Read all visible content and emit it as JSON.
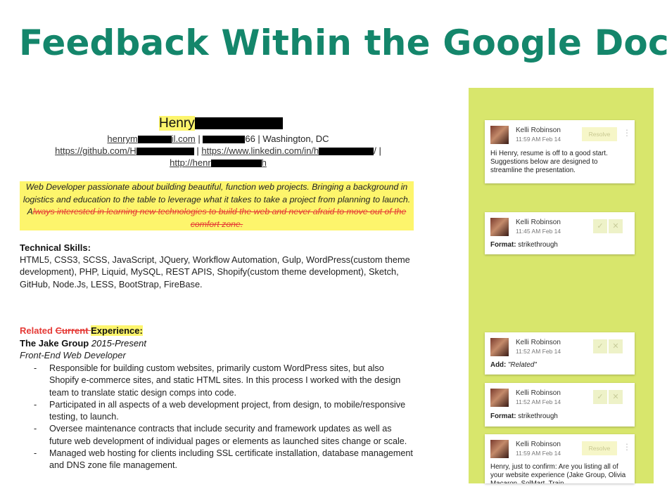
{
  "slide": {
    "title": "Feedback Within the Google Doc"
  },
  "resume": {
    "first_name": "Henry",
    "email_start": "henrym",
    "email_end": "il.com",
    "phone_sep": " | ",
    "phone_end": "66 | Washington, DC",
    "github": "https://github.com/H",
    "sep1": " | ",
    "linkedin": "https://www.linkedin.com/in/h",
    "sep2": "/ |",
    "site": "http://henr",
    "site_end": "h",
    "summary_kept": "Web Developer passionate about building beautiful, function web projects. Bringing a background in logistics and education to the table to leverage what it takes to take a project from planning to launch. A",
    "summary_struck": "lways interested in learning new technologies to build the web and never afraid to move out of the comfort zone.",
    "skills_heading": "Technical Skills:",
    "skills_text": "HTML5, CSS3, SCSS, JavaScript, JQuery, Workflow Automation, Gulp, WordPress(custom theme development), PHP, Liquid, MySQL, REST APIS, Shopify(custom theme development), Sketch, GitHub, Node.Js, LESS, BootStrap, FireBase.",
    "exp_related": "Related ",
    "exp_current": "Current ",
    "exp_word": "Experience:",
    "company": "The Jake Group",
    "company_dates": "2015-Present",
    "role": "Front-End Web Developer",
    "bullets": [
      "Responsible for building custom websites, primarily custom WordPress sites, but also Shopify e-commerce sites, and static HTML sites. In this process I worked with the design team to translate static design comps into code.",
      "Participated in all aspects of a web development project, from design, to mobile/responsive testing, to launch.",
      "Oversee maintenance contracts that include security and framework updates as well as future web development of individual pages or elements as launched sites change or scale.",
      "Managed web hosting for clients including SSL certificate installation, database management and DNS zone file management."
    ]
  },
  "comments": [
    {
      "author": "Kelli Robinson",
      "time": "11:59 AM Feb 14",
      "action": "Resolve",
      "text": "Hi Henry, resume is off to a good start. Suggestions below are designed to streamline the presentation."
    },
    {
      "author": "Kelli Robinson",
      "time": "11:45 AM Feb 14",
      "label": "Format:",
      "value": "strikethrough"
    },
    {
      "author": "Kelli Robinson",
      "time": "11:52 AM Feb 14",
      "label": "Add:",
      "value": "\"Related\""
    },
    {
      "author": "Kelli Robinson",
      "time": "11:52 AM Feb 14",
      "label": "Format:",
      "value": "strikethrough"
    },
    {
      "author": "Kelli Robinson",
      "time": "11:59 AM Feb 14",
      "action": "Resolve",
      "text": "Henry, just to confirm: Are you listing all of your website experience (Jake Group, Olivia Macaron, SolMart, Train"
    }
  ],
  "icons": {
    "accept": "check-icon",
    "reject": "close-icon",
    "menu": "more-vert-icon"
  },
  "colors": {
    "title": "#14866b",
    "panel": "#d8e66c",
    "highlight": "#fdf56c",
    "suggestion": "#e53935"
  }
}
